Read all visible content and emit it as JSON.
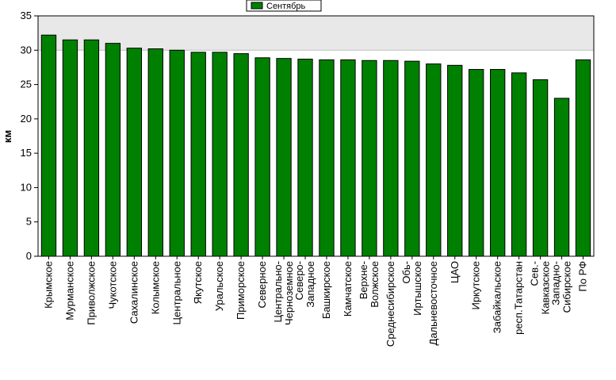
{
  "chart_data": {
    "type": "bar",
    "ylabel": "км",
    "ylim": [
      0,
      35
    ],
    "yticks": [
      0,
      5,
      10,
      15,
      20,
      25,
      30,
      35
    ],
    "grid": false,
    "legend_position": "top-center",
    "colors": {
      "bar": "#008000",
      "bar_edge": "#000000",
      "plot_background": "#e8e8e8",
      "page_background": "#ffffff"
    },
    "categories": [
      [
        "Крымское"
      ],
      [
        "Мурманское"
      ],
      [
        "Приволжское"
      ],
      [
        "Чукотское"
      ],
      [
        "Сахалинское"
      ],
      [
        "Колымское"
      ],
      [
        "Центральное"
      ],
      [
        "Якутское"
      ],
      [
        "Уральское"
      ],
      [
        "Приморское"
      ],
      [
        "Северное"
      ],
      [
        "Центрально-",
        "Черноземное"
      ],
      [
        "Северо-",
        "Западное"
      ],
      [
        "Башкирское"
      ],
      [
        "Камчатское"
      ],
      [
        "Верхне-",
        "Волжское"
      ],
      [
        "Среднесибирское"
      ],
      [
        "Обь-",
        "Иртышское"
      ],
      [
        "Дальневосточное"
      ],
      [
        "ЦАО"
      ],
      [
        "Иркутское"
      ],
      [
        "Забайкальское"
      ],
      [
        "респ.Татарстан"
      ],
      [
        "Сев.-",
        "Кавказское"
      ],
      [
        "Западно-",
        "Сибирское"
      ],
      [
        "По РФ"
      ]
    ],
    "series": [
      {
        "name": "Сентябрь",
        "values": [
          32.2,
          31.5,
          31.5,
          31.0,
          30.3,
          30.2,
          30.0,
          29.7,
          29.7,
          29.5,
          28.9,
          28.8,
          28.7,
          28.6,
          28.6,
          28.5,
          28.5,
          28.4,
          28.0,
          27.8,
          27.2,
          27.2,
          26.7,
          25.7,
          23.0,
          28.6
        ]
      }
    ]
  }
}
